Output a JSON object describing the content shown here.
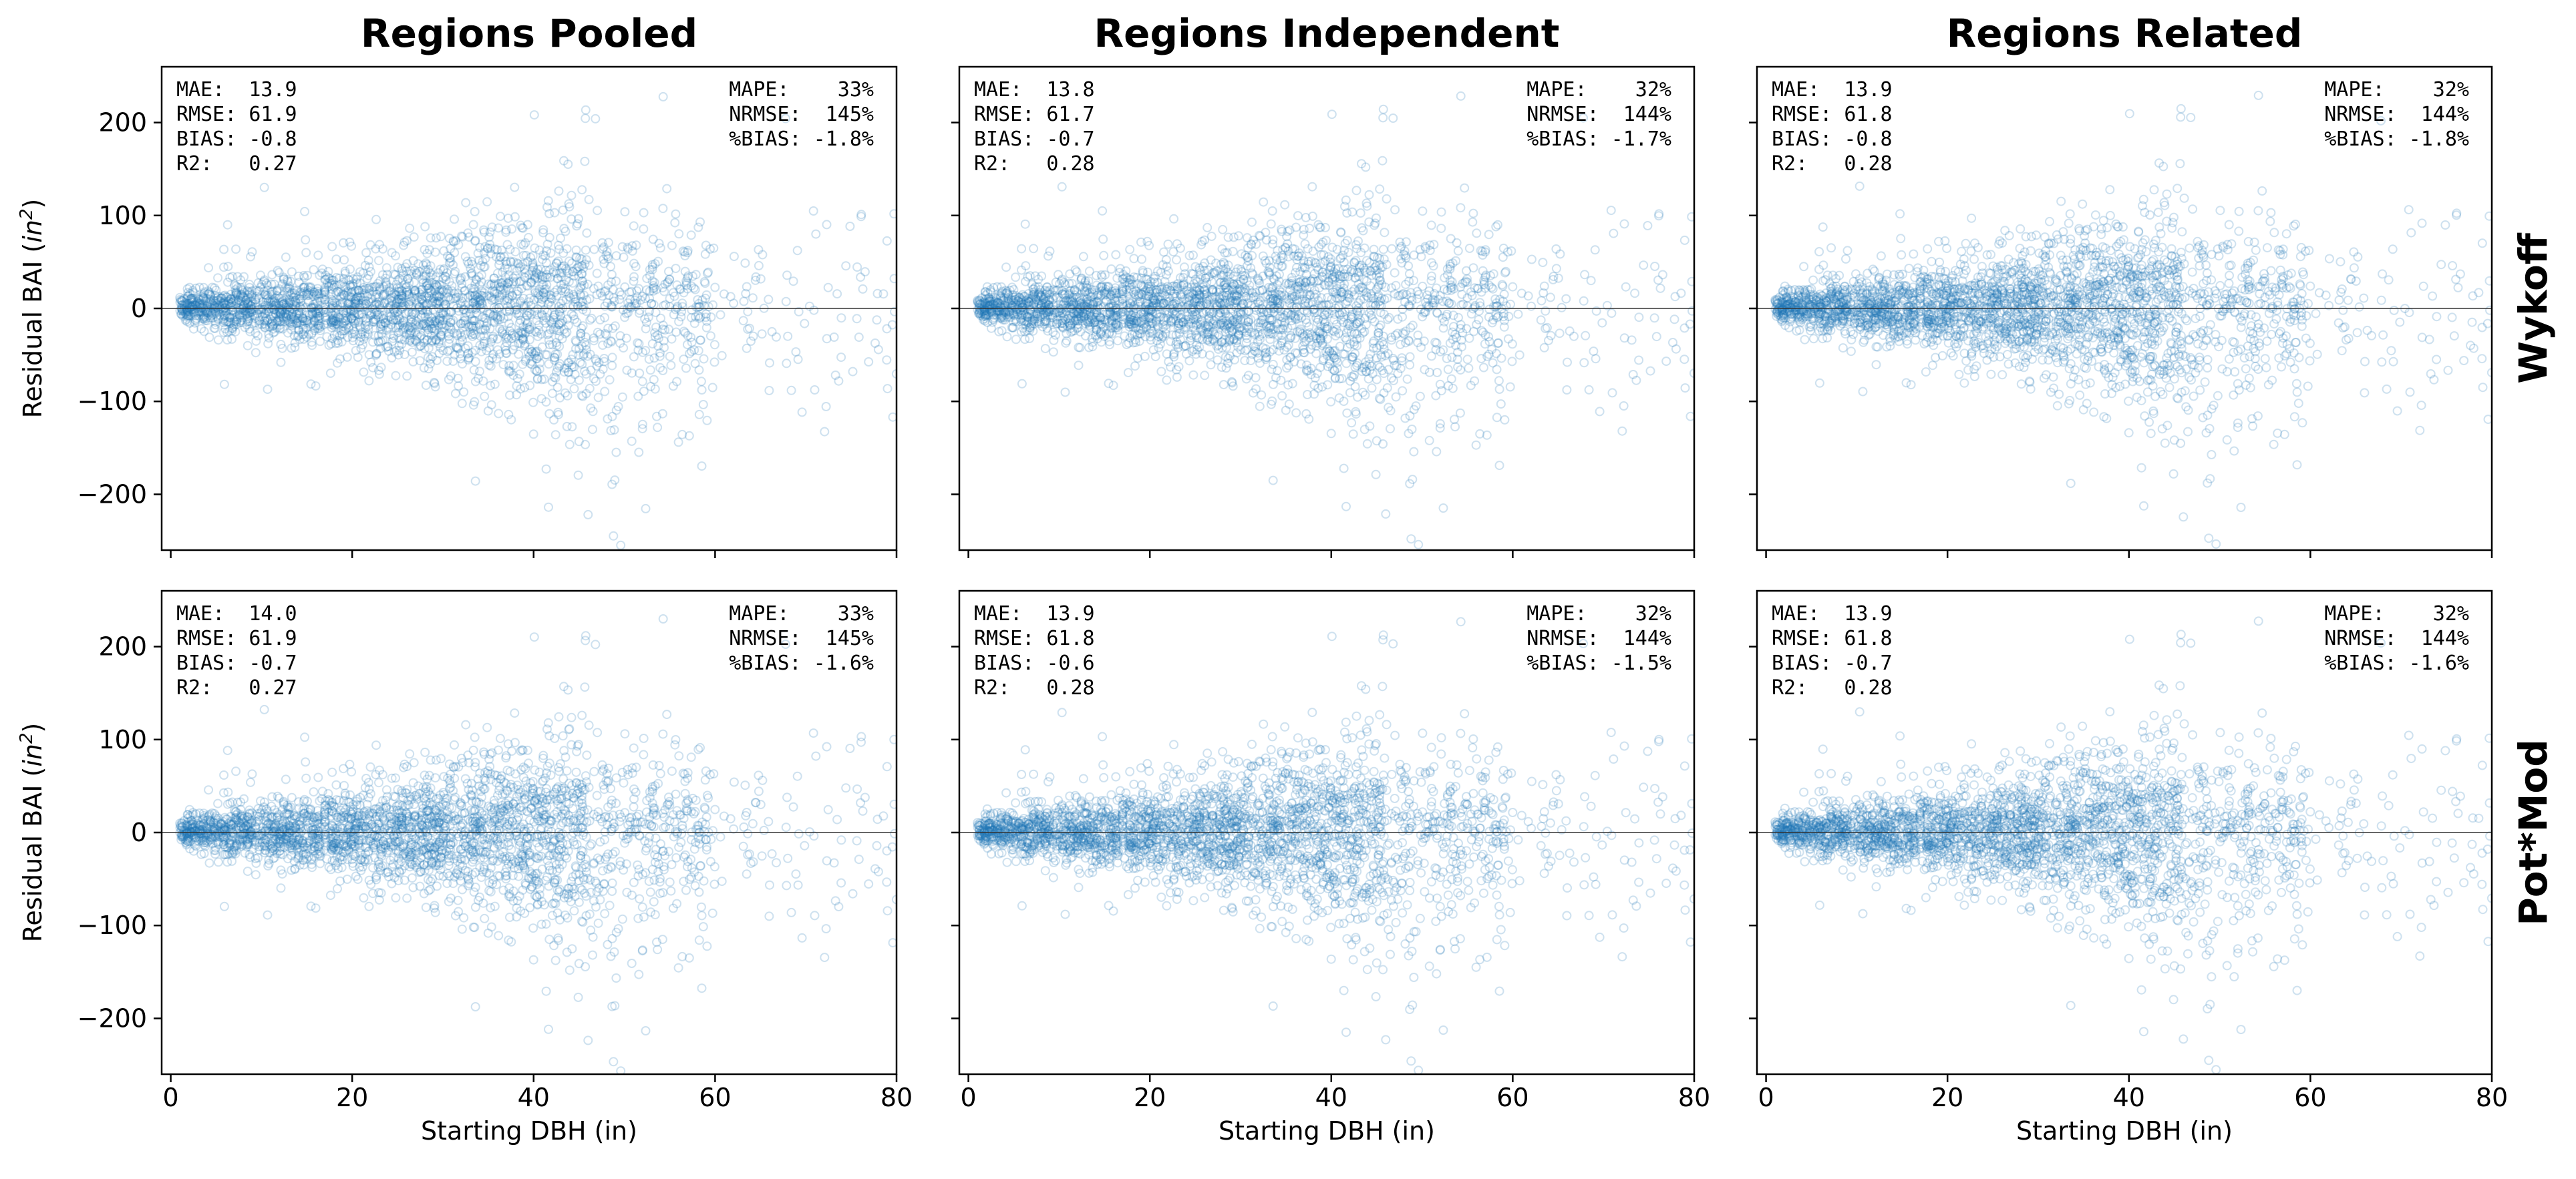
{
  "figure": {
    "column_titles": [
      "Regions Pooled",
      "Regions Independent",
      "Regions Related"
    ],
    "row_labels": [
      "Wykoff",
      "Pot*Mod"
    ],
    "xlabel": "Starting DBH (in)",
    "ylabel_prefix": "Residual BAI (",
    "ylabel_italic": "in",
    "ylabel_sup": "2",
    "ylabel_suffix": ")",
    "xlim": [
      -1,
      80
    ],
    "ylim": [
      -260,
      260
    ],
    "xticks": [
      0,
      20,
      40,
      60,
      80
    ],
    "yticks": [
      -200,
      -100,
      0,
      100,
      200
    ],
    "xtick_labels": [
      "0",
      "20",
      "40",
      "60",
      "80"
    ],
    "ytick_labels": [
      "−200",
      "−100",
      "0",
      "100",
      "200"
    ],
    "colors": {
      "points": "#1f77b4",
      "zero_line": "#333333",
      "axes": "#000000"
    }
  },
  "chart_data": [
    {
      "type": "scatter",
      "row": "Wykoff",
      "column": "Regions Pooled",
      "xlabel": "",
      "ylabel": "Residual BAI (in2)",
      "xlim": [
        -1,
        80
      ],
      "ylim": [
        -260,
        260
      ],
      "stats_left": [
        "MAE:  13.9",
        "RMSE: 61.9",
        "BIAS: -0.8",
        "R2:   0.27"
      ],
      "stats_right": [
        "MAPE:    33%",
        "NRMSE:  145%",
        "%BIAS: -1.8%"
      ]
    },
    {
      "type": "scatter",
      "row": "Wykoff",
      "column": "Regions Independent",
      "xlabel": "",
      "ylabel": "",
      "xlim": [
        -1,
        80
      ],
      "ylim": [
        -260,
        260
      ],
      "stats_left": [
        "MAE:  13.8",
        "RMSE: 61.7",
        "BIAS: -0.7",
        "R2:   0.28"
      ],
      "stats_right": [
        "MAPE:    32%",
        "NRMSE:  144%",
        "%BIAS: -1.7%"
      ]
    },
    {
      "type": "scatter",
      "row": "Wykoff",
      "column": "Regions Related",
      "xlabel": "",
      "ylabel": "",
      "xlim": [
        -1,
        80
      ],
      "ylim": [
        -260,
        260
      ],
      "stats_left": [
        "MAE:  13.9",
        "RMSE: 61.8",
        "BIAS: -0.8",
        "R2:   0.28"
      ],
      "stats_right": [
        "MAPE:    32%",
        "NRMSE:  144%",
        "%BIAS: -1.8%"
      ]
    },
    {
      "type": "scatter",
      "row": "Pot*Mod",
      "column": "Regions Pooled",
      "xlabel": "Starting DBH (in)",
      "ylabel": "Residual BAI (in2)",
      "xlim": [
        -1,
        80
      ],
      "ylim": [
        -260,
        260
      ],
      "stats_left": [
        "MAE:  14.0",
        "RMSE: 61.9",
        "BIAS: -0.7",
        "R2:   0.27"
      ],
      "stats_right": [
        "MAPE:    33%",
        "NRMSE:  145%",
        "%BIAS: -1.6%"
      ]
    },
    {
      "type": "scatter",
      "row": "Pot*Mod",
      "column": "Regions Independent",
      "xlabel": "Starting DBH (in)",
      "ylabel": "",
      "xlim": [
        -1,
        80
      ],
      "ylim": [
        -260,
        260
      ],
      "stats_left": [
        "MAE:  13.9",
        "RMSE: 61.8",
        "BIAS: -0.6",
        "R2:   0.28"
      ],
      "stats_right": [
        "MAPE:    32%",
        "NRMSE:  144%",
        "%BIAS: -1.5%"
      ]
    },
    {
      "type": "scatter",
      "row": "Pot*Mod",
      "column": "Regions Related",
      "xlabel": "Starting DBH (in)",
      "ylabel": "",
      "xlim": [
        -1,
        80
      ],
      "ylim": [
        -260,
        260
      ],
      "stats_left": [
        "MAE:  13.9",
        "RMSE: 61.8",
        "BIAS: -0.7",
        "R2:   0.28"
      ],
      "stats_right": [
        "MAPE:    32%",
        "NRMSE:  144%",
        "%BIAS: -1.6%"
      ]
    }
  ]
}
